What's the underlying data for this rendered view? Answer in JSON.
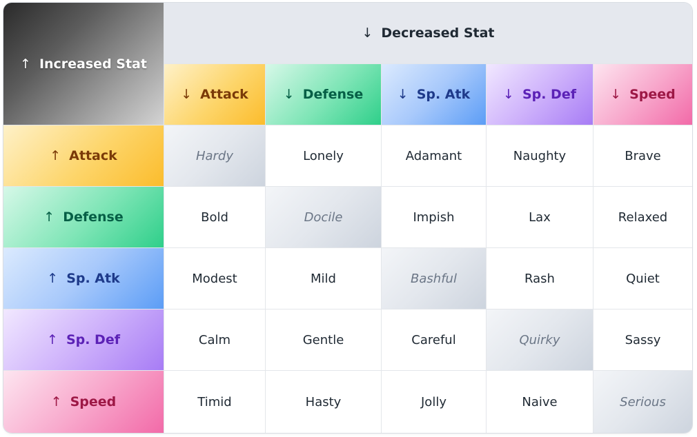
{
  "corner_label": "Increased Stat",
  "decreased_label": "Decreased Stat",
  "up_arrow": "↑",
  "down_arrow": "↓",
  "stats": [
    "Attack",
    "Defense",
    "Sp. Atk",
    "Sp. Def",
    "Speed"
  ],
  "natures": [
    [
      "Hardy",
      "Lonely",
      "Adamant",
      "Naughty",
      "Brave"
    ],
    [
      "Bold",
      "Docile",
      "Impish",
      "Lax",
      "Relaxed"
    ],
    [
      "Modest",
      "Mild",
      "Bashful",
      "Rash",
      "Quiet"
    ],
    [
      "Calm",
      "Gentle",
      "Careful",
      "Quirky",
      "Sassy"
    ],
    [
      "Timid",
      "Hasty",
      "Jolly",
      "Naive",
      "Serious"
    ]
  ],
  "stat_colors": {
    "Attack": "#fbbc2c",
    "Defense": "#2fcf8a",
    "Sp. Atk": "#5c9df6",
    "Sp. Def": "#a77cf5",
    "Speed": "#f26aa8"
  }
}
